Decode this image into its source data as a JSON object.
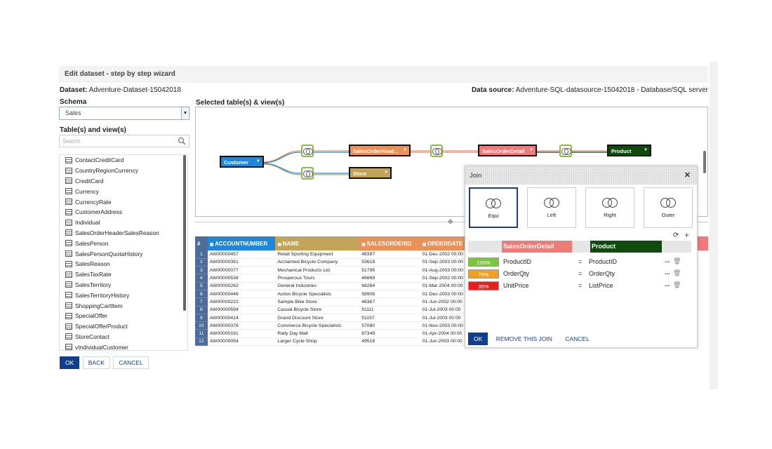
{
  "header": {
    "title": "Edit dataset - step by step wizard"
  },
  "dataset": {
    "label": "Dataset:",
    "value": "Adventure-Dataset-15042018"
  },
  "datasource": {
    "label": "Data source:",
    "value": "Adventure-SQL-datasource-15042018 - Database/SQL server"
  },
  "schema": {
    "label": "Schema",
    "value": "Sales"
  },
  "tables_label": "Table(s) and view(s)",
  "search_placeholder": "Search",
  "tables": [
    "ContactCreditCard",
    "CountryRegionCurrency",
    "CreditCard",
    "Currency",
    "CurrencyRate",
    "CustomerAddress",
    "Individual",
    "SalesOrderHeaderSalesReason",
    "SalesPerson",
    "SalesPersonQuotaHistory",
    "SalesReason",
    "SalesTaxRate",
    "SalesTerritory",
    "SalesTerritoryHistory",
    "ShoppingCartItem",
    "SpecialOffer",
    "SpecialOfferProduct",
    "StoreContact",
    "vIndividualCustomer"
  ],
  "selected_label": "Selected table(s) & view(s)",
  "nodes": {
    "customer": "Customer",
    "soh": "SalesOrderHead...",
    "store": "Store",
    "sod": "SalesOrderDetail",
    "product": "Product"
  },
  "colors": {
    "customer": "#1f86d8",
    "soh": "#e8925a",
    "store": "#c2a35a",
    "sod": "#ee7a7a",
    "product": "#0f4a0f",
    "blue_dark": "#0f3f8c"
  },
  "grid": {
    "columns": [
      {
        "label": "#"
      },
      {
        "label": "ACCOUNTNUMBER",
        "type": "T"
      },
      {
        "label": "NAME",
        "type": "T"
      },
      {
        "label": "SALESORDERID",
        "type": "123"
      },
      {
        "label": "ORDERDATE",
        "type": "date"
      }
    ],
    "rows": [
      [
        "1",
        "AW00000457",
        "Retail Sporting Equipment",
        "48397",
        "01-Dec-2002 00:00"
      ],
      [
        "2",
        "AW00000351",
        "Acclaimed Bicycle Company",
        "53618",
        "01-Sep-2003 00:00"
      ],
      [
        "3",
        "AW00000077",
        "Mechanical Products Ltd.",
        "51795",
        "01-Aug-2003 00:00"
      ],
      [
        "4",
        "AW00000538",
        "Prosperous Tours",
        "46669",
        "01-Sep-2002 00:00"
      ],
      [
        "5",
        "AW00000262",
        "General Industries",
        "68284",
        "01-Mar-2004 00:00"
      ],
      [
        "6",
        "AW00000446",
        "Action Bicycle Specialists",
        "58908",
        "01-Dec-2003 00:00"
      ],
      [
        "7",
        "AW00000222",
        "Sample Bike Store",
        "46367",
        "01-Jun-2002 00:00"
      ],
      [
        "8",
        "AW00000594",
        "Casual Bicycle Store",
        "51111",
        "01-Jul-2003 00:00"
      ],
      [
        "9",
        "AW00000414",
        "Grand Discount Store",
        "51157",
        "01-Jul-2003 00:00"
      ],
      [
        "10",
        "AW00000376",
        "Commerce Bicycle Specialists",
        "57080",
        "01-Nov-2003 00:00"
      ],
      [
        "11",
        "AW00000191",
        "Rally Day Mall",
        "67349",
        "01-Apr-2004 00:00"
      ],
      [
        "12",
        "AW00000054",
        "Larger Cycle Shop",
        "49518",
        "01-Jun-2003 00:00"
      ]
    ]
  },
  "join": {
    "title": "Join",
    "types": [
      "Equi",
      "Left",
      "Right",
      "Outer"
    ],
    "selected": "Equi",
    "left_table": "SalesOrderDetail",
    "right_table": "Product",
    "conditions": [
      {
        "pct": "100%",
        "left": "ProductID",
        "op": "=",
        "right": "ProductID",
        "color": "#7cc63f"
      },
      {
        "pct": "75%",
        "left": "OrderQty",
        "op": "=",
        "right": "OrderQty",
        "color": "#f0a020"
      },
      {
        "pct": "35%",
        "left": "UnitPrice",
        "op": "=",
        "right": "ListPrice",
        "color": "#e82020"
      }
    ],
    "more": "...",
    "ok": "OK",
    "remove": "REMOVE THIS JOIN",
    "cancel": "CANCEL"
  },
  "footer": {
    "ok": "OK",
    "back": "BACK",
    "cancel": "CANCEL"
  }
}
